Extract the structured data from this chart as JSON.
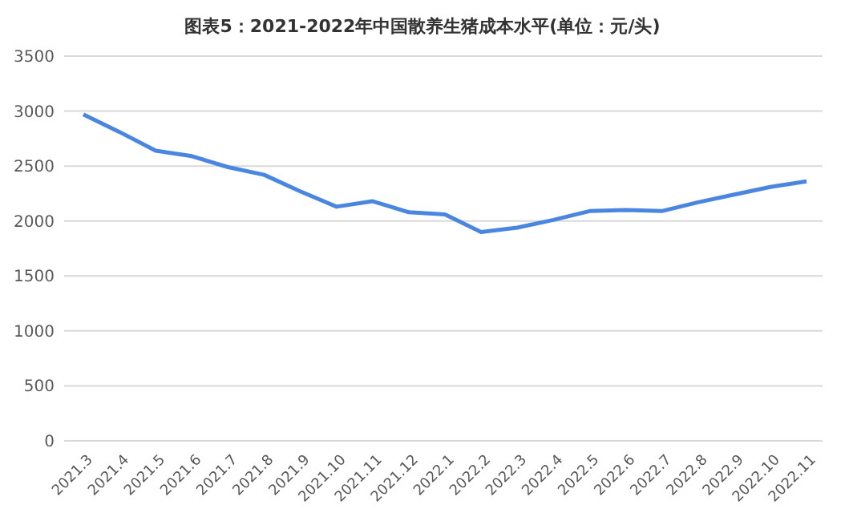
{
  "chart_data": {
    "type": "line",
    "title": "图表5：2021-2022年中国散养生猪成本水平(单位：元/头)",
    "categories": [
      "2021.3",
      "2021.4",
      "2021.5",
      "2021.6",
      "2021.7",
      "2021.8",
      "2021.9",
      "2021.10",
      "2021.11",
      "2021.12",
      "2022.1",
      "2022.2",
      "2022.3",
      "2022.4",
      "2022.5",
      "2022.6",
      "2022.7",
      "2022.8",
      "2022.9",
      "2022.10",
      "2022.11"
    ],
    "series": [
      {
        "color": "#4a86e0",
        "values": [
          2970,
          2810,
          2640,
          2590,
          2490,
          2420,
          2270,
          2130,
          2180,
          2080,
          2060,
          1900,
          1940,
          2010,
          2090,
          2100,
          2090,
          2170,
          2240,
          2310,
          2360
        ]
      }
    ],
    "ylim": [
      0,
      3500
    ],
    "yticks": [
      0,
      500,
      1000,
      1500,
      2000,
      2500,
      3000,
      3500
    ],
    "grid": "y",
    "marker": "none",
    "line_style": "solid"
  }
}
